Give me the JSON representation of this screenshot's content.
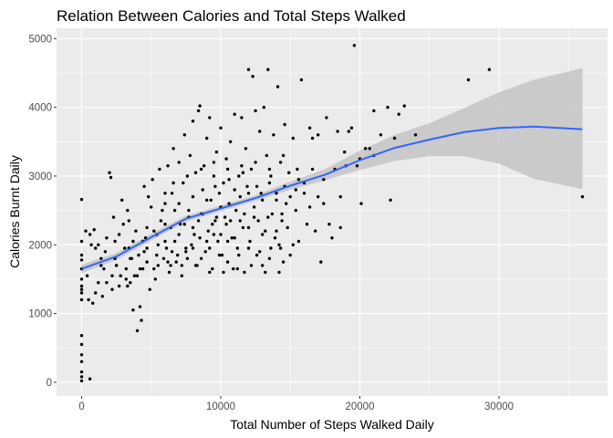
{
  "chart_data": {
    "type": "scatter",
    "title": "Relation Between Calories and Total Steps Walked",
    "xlabel": "Total Number of Steps Walked Daily",
    "ylabel": "Calories Burnt Daily",
    "xlim": [
      -1800,
      37800
    ],
    "ylim": [
      -200,
      5150
    ],
    "x_ticks": [
      0,
      10000,
      20000,
      30000
    ],
    "y_ticks": [
      0,
      1000,
      2000,
      3000,
      4000,
      5000
    ],
    "grid": true,
    "colors": {
      "panel": "#ebebeb",
      "grid_major": "#ffffff",
      "points": "#000000",
      "smooth_line": "#3366ff",
      "confidence_band": "#bfbfbf"
    },
    "smooth": {
      "method": "loess",
      "x": [
        0,
        2500,
        5000,
        7500,
        10000,
        12500,
        15000,
        17500,
        20000,
        22500,
        25000,
        27500,
        30000,
        32500,
        36000
      ],
      "y": [
        1650,
        1830,
        2110,
        2380,
        2530,
        2680,
        2860,
        3020,
        3230,
        3410,
        3530,
        3640,
        3700,
        3720,
        3680
      ],
      "lower": [
        1590,
        1780,
        2060,
        2340,
        2490,
        2640,
        2800,
        2940,
        3090,
        3220,
        3290,
        3290,
        3180,
        2960,
        2810
      ],
      "upper": [
        1710,
        1880,
        2160,
        2420,
        2570,
        2720,
        2920,
        3100,
        3370,
        3600,
        3770,
        3990,
        4220,
        4400,
        4570
      ]
    },
    "points": [
      [
        0,
        2660
      ],
      [
        0,
        2050
      ],
      [
        0,
        1850
      ],
      [
        0,
        1780
      ],
      [
        0,
        1650
      ],
      [
        0,
        1500
      ],
      [
        0,
        1400
      ],
      [
        0,
        1350
      ],
      [
        0,
        1300
      ],
      [
        0,
        1200
      ],
      [
        0,
        680
      ],
      [
        0,
        550
      ],
      [
        0,
        400
      ],
      [
        0,
        300
      ],
      [
        0,
        150
      ],
      [
        0,
        80
      ],
      [
        0,
        20
      ],
      [
        600,
        50
      ],
      [
        300,
        2200
      ],
      [
        600,
        2150
      ],
      [
        900,
        2220
      ],
      [
        500,
        1200
      ],
      [
        800,
        1150
      ],
      [
        1000,
        1300
      ],
      [
        1200,
        2000
      ],
      [
        1400,
        1800
      ],
      [
        1500,
        1250
      ],
      [
        1600,
        1650
      ],
      [
        1800,
        1450
      ],
      [
        2000,
        3050
      ],
      [
        2100,
        2980
      ],
      [
        2200,
        1350
      ],
      [
        2400,
        2050
      ],
      [
        2500,
        1700
      ],
      [
        2800,
        1550
      ],
      [
        3000,
        2300
      ],
      [
        3100,
        1950
      ],
      [
        3300,
        2500
      ],
      [
        3500,
        1450
      ],
      [
        3600,
        1800
      ],
      [
        3700,
        1050
      ],
      [
        3900,
        2200
      ],
      [
        4000,
        750
      ],
      [
        4200,
        1100
      ],
      [
        4300,
        900
      ],
      [
        4400,
        1650
      ],
      [
        4600,
        2100
      ],
      [
        4700,
        1950
      ],
      [
        4800,
        2700
      ],
      [
        4900,
        1350
      ],
      [
        2700,
        1400
      ],
      [
        3200,
        1650
      ],
      [
        3400,
        2350
      ],
      [
        3800,
        1550
      ],
      [
        4100,
        1850
      ],
      [
        4500,
        2850
      ],
      [
        5100,
        2950
      ],
      [
        5200,
        2200
      ],
      [
        5300,
        1500
      ],
      [
        5500,
        1700
      ],
      [
        5600,
        3100
      ],
      [
        5800,
        2500
      ],
      [
        5900,
        1800
      ],
      [
        6000,
        2600
      ],
      [
        6100,
        1950
      ],
      [
        6200,
        3150
      ],
      [
        6300,
        1600
      ],
      [
        6500,
        2750
      ],
      [
        6600,
        3400
      ],
      [
        6700,
        2050
      ],
      [
        6800,
        1750
      ],
      [
        7000,
        3200
      ],
      [
        7100,
        2300
      ],
      [
        7200,
        1550
      ],
      [
        7300,
        2900
      ],
      [
        7400,
        3600
      ],
      [
        7500,
        1900
      ],
      [
        7700,
        2400
      ],
      [
        7800,
        3300
      ],
      [
        7900,
        2000
      ],
      [
        8000,
        3800
      ],
      [
        8100,
        2150
      ],
      [
        8200,
        3050
      ],
      [
        8300,
        1700
      ],
      [
        8400,
        3950
      ],
      [
        8500,
        4020
      ],
      [
        8600,
        2450
      ],
      [
        8700,
        2800
      ],
      [
        8800,
        3150
      ],
      [
        8900,
        1900
      ],
      [
        9000,
        3550
      ],
      [
        9100,
        2200
      ],
      [
        9200,
        3850
      ],
      [
        9300,
        2650
      ],
      [
        9400,
        1650
      ],
      [
        9500,
        3000
      ],
      [
        9600,
        2350
      ],
      [
        9700,
        3350
      ],
      [
        9800,
        2050
      ],
      [
        9900,
        2750
      ],
      [
        10000,
        3700
      ],
      [
        10100,
        1850
      ],
      [
        10200,
        2900
      ],
      [
        10300,
        2400
      ],
      [
        10400,
        3250
      ],
      [
        10500,
        1750
      ],
      [
        10600,
        2600
      ],
      [
        10700,
        3500
      ],
      [
        10800,
        2100
      ],
      [
        10900,
        1650
      ],
      [
        11000,
        3900
      ],
      [
        11100,
        2500
      ],
      [
        11200,
        1950
      ],
      [
        11300,
        3000
      ],
      [
        11400,
        2700
      ],
      [
        11500,
        3850
      ],
      [
        11600,
        2250
      ],
      [
        11700,
        1600
      ],
      [
        11800,
        3400
      ],
      [
        11900,
        2850
      ],
      [
        12000,
        4550
      ],
      [
        12100,
        2050
      ],
      [
        12200,
        3100
      ],
      [
        12300,
        4450
      ],
      [
        12400,
        2550
      ],
      [
        12500,
        3950
      ],
      [
        12600,
        1850
      ],
      [
        12700,
        2350
      ],
      [
        12800,
        3650
      ],
      [
        12900,
        2750
      ],
      [
        13000,
        1700
      ],
      [
        13100,
        4000
      ],
      [
        13200,
        2200
      ],
      [
        13300,
        3300
      ],
      [
        13400,
        4550
      ],
      [
        13500,
        2900
      ],
      [
        13600,
        1950
      ],
      [
        13700,
        2450
      ],
      [
        13800,
        3600
      ],
      [
        13900,
        2100
      ],
      [
        14000,
        2650
      ],
      [
        14100,
        4300
      ],
      [
        14200,
        2000
      ],
      [
        14300,
        3200
      ],
      [
        14400,
        2350
      ],
      [
        14500,
        1750
      ],
      [
        14600,
        3750
      ],
      [
        14700,
        2600
      ],
      [
        14800,
        2250
      ],
      [
        14900,
        3050
      ],
      [
        15000,
        1850
      ],
      [
        15200,
        3550
      ],
      [
        15400,
        2800
      ],
      [
        15600,
        2050
      ],
      [
        15800,
        4400
      ],
      [
        16000,
        2900
      ],
      [
        16200,
        2300
      ],
      [
        16400,
        3700
      ],
      [
        16600,
        3550
      ],
      [
        16800,
        2200
      ],
      [
        17000,
        3600
      ],
      [
        17200,
        1750
      ],
      [
        17400,
        2950
      ],
      [
        17600,
        3850
      ],
      [
        17800,
        2300
      ],
      [
        18000,
        2100
      ],
      [
        18200,
        3100
      ],
      [
        18400,
        3650
      ],
      [
        18600,
        2250
      ],
      [
        18900,
        3350
      ],
      [
        19200,
        3650
      ],
      [
        19400,
        3700
      ],
      [
        19600,
        4900
      ],
      [
        19800,
        3150
      ],
      [
        20000,
        3250
      ],
      [
        20100,
        2600
      ],
      [
        20400,
        3400
      ],
      [
        20700,
        3400
      ],
      [
        21000,
        3950
      ],
      [
        21500,
        3600
      ],
      [
        22000,
        4000
      ],
      [
        22200,
        2650
      ],
      [
        22500,
        3550
      ],
      [
        22800,
        3900
      ],
      [
        23200,
        4020
      ],
      [
        24000,
        3600
      ],
      [
        27800,
        4400
      ],
      [
        29300,
        4550
      ],
      [
        36000,
        2700
      ],
      [
        1000,
        1950
      ],
      [
        1800,
        2100
      ],
      [
        2300,
        2400
      ],
      [
        2900,
        2650
      ],
      [
        3300,
        1400
      ],
      [
        4000,
        1550
      ],
      [
        4700,
        1750
      ],
      [
        5400,
        1850
      ],
      [
        6000,
        2050
      ],
      [
        6400,
        1700
      ],
      [
        6900,
        1850
      ],
      [
        7600,
        1800
      ],
      [
        8000,
        1950
      ],
      [
        8600,
        1800
      ],
      [
        9200,
        1950
      ],
      [
        9900,
        1850
      ],
      [
        10500,
        2050
      ],
      [
        11300,
        1850
      ],
      [
        12000,
        1950
      ],
      [
        12800,
        1900
      ],
      [
        13500,
        1800
      ],
      [
        14300,
        1950
      ],
      [
        15200,
        2000
      ],
      [
        6000,
        2300
      ],
      [
        7000,
        2150
      ],
      [
        8000,
        2250
      ],
      [
        9000,
        2050
      ],
      [
        10000,
        2150
      ],
      [
        11000,
        2100
      ],
      [
        12000,
        2250
      ],
      [
        13000,
        2150
      ],
      [
        14000,
        2200
      ],
      [
        5000,
        2550
      ],
      [
        6000,
        2750
      ],
      [
        7000,
        2600
      ],
      [
        8000,
        2700
      ],
      [
        9000,
        2650
      ],
      [
        10000,
        2550
      ],
      [
        11000,
        2800
      ],
      [
        12000,
        2750
      ],
      [
        13000,
        2650
      ],
      [
        14000,
        2750
      ],
      [
        15000,
        2700
      ],
      [
        16000,
        2750
      ],
      [
        17000,
        2700
      ],
      [
        9500,
        3200
      ],
      [
        10500,
        3100
      ],
      [
        11500,
        3150
      ],
      [
        12500,
        3200
      ],
      [
        13500,
        3100
      ],
      [
        14500,
        3300
      ],
      [
        15500,
        3100
      ],
      [
        2500,
        1700
      ],
      [
        3500,
        1800
      ],
      [
        4500,
        1900
      ],
      [
        5500,
        2000
      ],
      [
        6500,
        1900
      ],
      [
        7500,
        1950
      ],
      [
        8500,
        2100
      ],
      [
        9500,
        2150
      ],
      [
        1200,
        1450
      ],
      [
        2200,
        1550
      ],
      [
        3200,
        1500
      ],
      [
        4200,
        1650
      ],
      [
        5200,
        1650
      ],
      [
        6200,
        1750
      ],
      [
        7200,
        1700
      ],
      [
        8200,
        1700
      ],
      [
        9200,
        1600
      ],
      [
        10200,
        1600
      ],
      [
        11200,
        1650
      ],
      [
        12200,
        1700
      ],
      [
        13200,
        1600
      ],
      [
        14200,
        1600
      ],
      [
        6600,
        2900
      ],
      [
        7600,
        3000
      ],
      [
        8600,
        3100
      ],
      [
        9600,
        2850
      ],
      [
        10600,
        2950
      ],
      [
        11600,
        3050
      ],
      [
        12600,
        2850
      ],
      [
        13600,
        3000
      ],
      [
        14600,
        2850
      ],
      [
        15600,
        2950
      ],
      [
        16600,
        3100
      ],
      [
        18600,
        2700
      ],
      [
        19000,
        3150
      ],
      [
        21000,
        3300
      ],
      [
        700,
        2000
      ],
      [
        1700,
        1900
      ],
      [
        2700,
        2150
      ],
      [
        3700,
        2050
      ],
      [
        4700,
        2250
      ],
      [
        5700,
        2350
      ],
      [
        6700,
        2500
      ],
      [
        7700,
        2500
      ],
      [
        8700,
        2450
      ],
      [
        9700,
        2400
      ],
      [
        10700,
        2350
      ],
      [
        11700,
        2450
      ],
      [
        400,
        1550
      ],
      [
        1400,
        1700
      ],
      [
        2400,
        1800
      ],
      [
        3400,
        1950
      ],
      [
        4400,
        2050
      ],
      [
        5400,
        2150
      ],
      [
        6400,
        2250
      ],
      [
        7400,
        2300
      ],
      [
        8400,
        2350
      ],
      [
        9400,
        2300
      ],
      [
        10400,
        2300
      ],
      [
        11400,
        2350
      ],
      [
        12400,
        2400
      ],
      [
        13400,
        2400
      ],
      [
        14400,
        2450
      ],
      [
        15400,
        2500
      ],
      [
        16400,
        2550
      ],
      [
        17400,
        2600
      ]
    ]
  }
}
